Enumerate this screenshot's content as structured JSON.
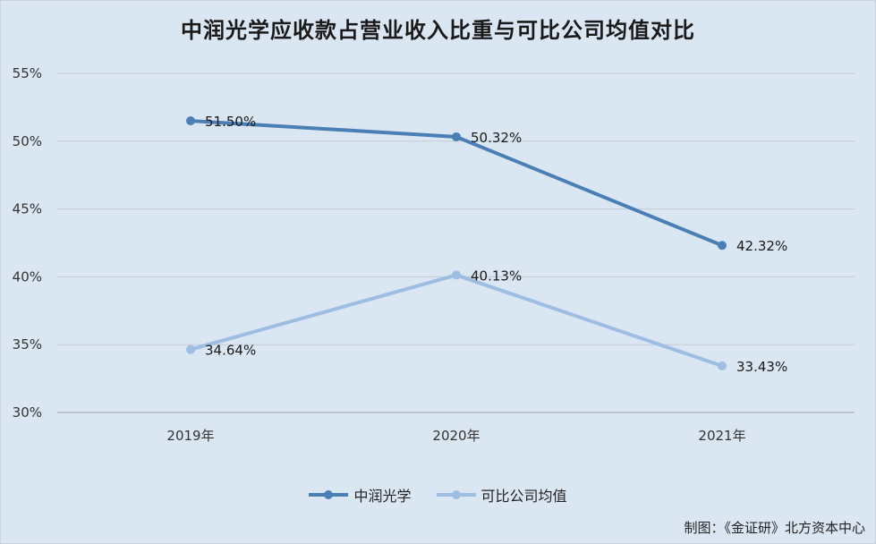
{
  "chart_data": {
    "type": "line",
    "title": "中润光学应收款占营业收入比重与可比公司均值对比",
    "categories": [
      "2019年",
      "2020年",
      "2021年"
    ],
    "series": [
      {
        "name": "中润光学",
        "values": [
          51.5,
          50.32,
          42.32
        ],
        "labels": [
          "51.50%",
          "50.32%",
          "42.32%"
        ],
        "color": "#4a7fb5"
      },
      {
        "name": "可比公司均值",
        "values": [
          34.64,
          40.13,
          33.43
        ],
        "labels": [
          "34.64%",
          "40.13%",
          "33.43%"
        ],
        "color": "#9dbde2"
      }
    ],
    "ylim": [
      30,
      55
    ],
    "yticks": [
      "30%",
      "35%",
      "40%",
      "45%",
      "50%",
      "55%"
    ],
    "grid": true,
    "legend": "bottom"
  },
  "credit": "制图：《金证研》北方资本中心"
}
